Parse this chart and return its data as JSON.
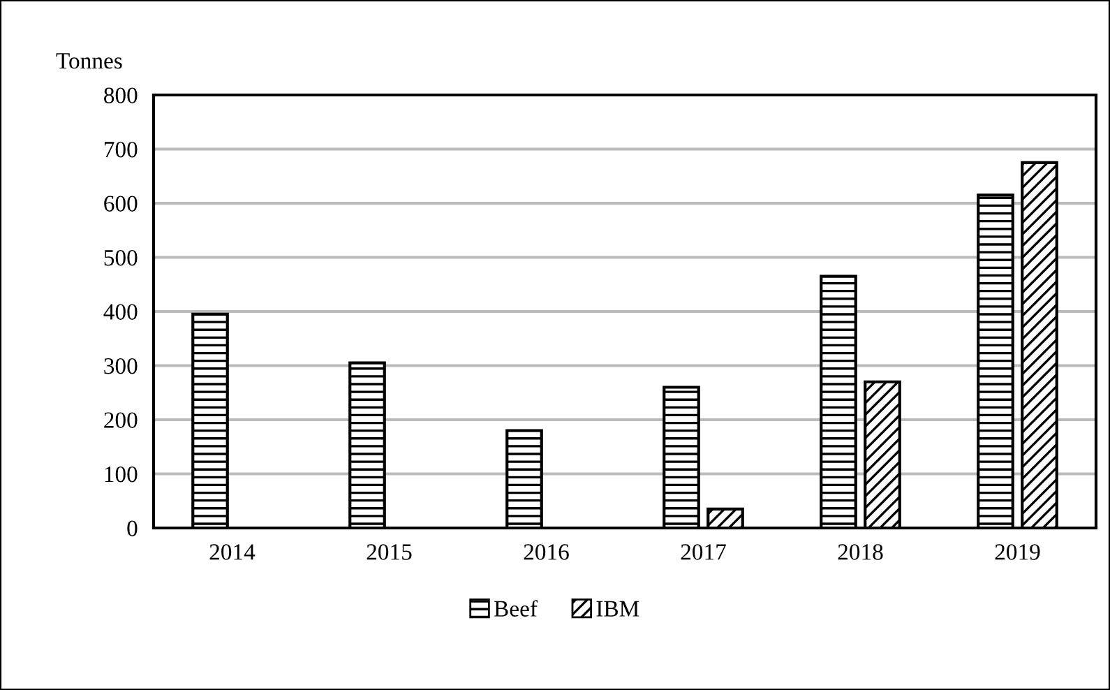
{
  "chart_data": {
    "type": "bar",
    "ylabel": "Tonnes",
    "categories": [
      "2014",
      "2015",
      "2016",
      "2017",
      "2018",
      "2019"
    ],
    "series": [
      {
        "name": "Beef",
        "color": "#000000",
        "values": [
          395,
          305,
          180,
          260,
          465,
          615
        ]
      },
      {
        "name": "IBM",
        "color": "#000000",
        "values": [
          null,
          null,
          null,
          35,
          270,
          675
        ]
      }
    ],
    "ylim": [
      0,
      800
    ],
    "yticks": [
      0,
      100,
      200,
      300,
      400,
      500,
      600,
      700,
      800
    ],
    "grid": "y",
    "legend": "bottom"
  }
}
